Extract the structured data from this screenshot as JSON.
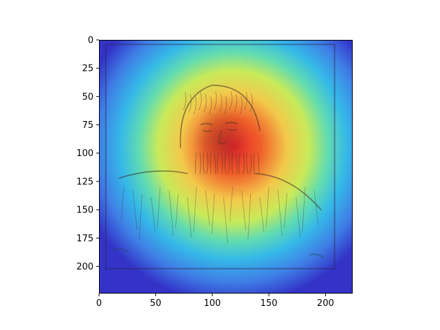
{
  "chart_data": {
    "type": "heatmap",
    "title": "",
    "xlabel": "",
    "ylabel": "",
    "xlim": [
      0,
      224
    ],
    "ylim": [
      224,
      0
    ],
    "x_ticks": [
      0,
      50,
      100,
      150,
      200
    ],
    "y_ticks": [
      0,
      25,
      50,
      75,
      100,
      125,
      150,
      175,
      200
    ],
    "x_tick_labels": [
      "0",
      "50",
      "100",
      "150",
      "200"
    ],
    "y_tick_labels": [
      "0",
      "25",
      "50",
      "75",
      "100",
      "125",
      "150",
      "175",
      "200"
    ],
    "grid": false,
    "colormap": "jet",
    "heatmap": {
      "peak_center": [
        118,
        95
      ],
      "sigma": [
        52,
        62
      ],
      "peak_intensity": 1.0,
      "background_intensity": 0.0
    },
    "underlay": {
      "description_icon": "engraved-portrait-image",
      "tone": "monochrome-sepia"
    }
  },
  "colors": {
    "axis": "#000000",
    "cold": "#2b2bd6",
    "mid": "#7fe27f",
    "hot": "#e8402f"
  }
}
